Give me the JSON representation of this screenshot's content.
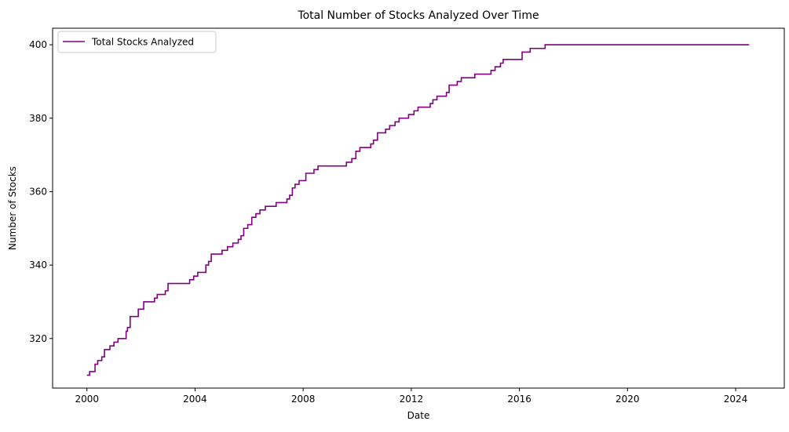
{
  "chart_data": {
    "type": "line",
    "title": "Total Number of Stocks Analyzed Over Time",
    "xlabel": "Date",
    "ylabel": "Number of Stocks",
    "x_ticks": [
      "2000",
      "2004",
      "2008",
      "2012",
      "2016",
      "2020",
      "2024"
    ],
    "y_ticks": [
      "320",
      "340",
      "360",
      "380",
      "400"
    ],
    "xlim": [
      1998.73,
      2025.8
    ],
    "ylim": [
      306.5,
      404.5
    ],
    "grid": false,
    "legend": {
      "position": "upper-left",
      "entries": [
        "Total Stocks Analyzed"
      ]
    },
    "colors": {
      "line": "#800080"
    },
    "series": [
      {
        "name": "Total Stocks Analyzed",
        "points": [
          [
            2000.0,
            310
          ],
          [
            2000.1,
            311
          ],
          [
            2000.3,
            313
          ],
          [
            2000.4,
            314
          ],
          [
            2000.55,
            315
          ],
          [
            2000.65,
            317
          ],
          [
            2000.85,
            318
          ],
          [
            2001.0,
            319
          ],
          [
            2001.15,
            320
          ],
          [
            2001.45,
            322
          ],
          [
            2001.5,
            323
          ],
          [
            2001.6,
            326
          ],
          [
            2001.9,
            328
          ],
          [
            2002.1,
            330
          ],
          [
            2002.5,
            331
          ],
          [
            2002.6,
            332
          ],
          [
            2002.9,
            333
          ],
          [
            2003.0,
            335
          ],
          [
            2003.8,
            336
          ],
          [
            2003.95,
            337
          ],
          [
            2004.1,
            338
          ],
          [
            2004.4,
            340
          ],
          [
            2004.5,
            341
          ],
          [
            2004.6,
            343
          ],
          [
            2005.0,
            344
          ],
          [
            2005.2,
            345
          ],
          [
            2005.4,
            346
          ],
          [
            2005.6,
            347
          ],
          [
            2005.7,
            348
          ],
          [
            2005.8,
            350
          ],
          [
            2005.95,
            351
          ],
          [
            2006.1,
            353
          ],
          [
            2006.25,
            354
          ],
          [
            2006.4,
            355
          ],
          [
            2006.6,
            356
          ],
          [
            2007.0,
            357
          ],
          [
            2007.4,
            358
          ],
          [
            2007.5,
            359
          ],
          [
            2007.6,
            361
          ],
          [
            2007.7,
            362
          ],
          [
            2007.85,
            363
          ],
          [
            2008.1,
            365
          ],
          [
            2008.4,
            366
          ],
          [
            2008.55,
            367
          ],
          [
            2009.6,
            368
          ],
          [
            2009.8,
            369
          ],
          [
            2009.95,
            371
          ],
          [
            2010.1,
            372
          ],
          [
            2010.5,
            373
          ],
          [
            2010.6,
            374
          ],
          [
            2010.75,
            376
          ],
          [
            2011.05,
            377
          ],
          [
            2011.2,
            378
          ],
          [
            2011.4,
            379
          ],
          [
            2011.55,
            380
          ],
          [
            2011.9,
            381
          ],
          [
            2012.1,
            382
          ],
          [
            2012.25,
            383
          ],
          [
            2012.7,
            384
          ],
          [
            2012.8,
            385
          ],
          [
            2012.95,
            386
          ],
          [
            2013.3,
            387
          ],
          [
            2013.4,
            389
          ],
          [
            2013.7,
            390
          ],
          [
            2013.85,
            391
          ],
          [
            2014.35,
            392
          ],
          [
            2014.95,
            393
          ],
          [
            2015.1,
            394
          ],
          [
            2015.3,
            395
          ],
          [
            2015.4,
            396
          ],
          [
            2015.5,
            396
          ],
          [
            2016.1,
            398
          ],
          [
            2016.4,
            399
          ],
          [
            2016.9,
            399
          ],
          [
            2016.95,
            400
          ],
          [
            2024.5,
            400
          ]
        ]
      }
    ]
  }
}
